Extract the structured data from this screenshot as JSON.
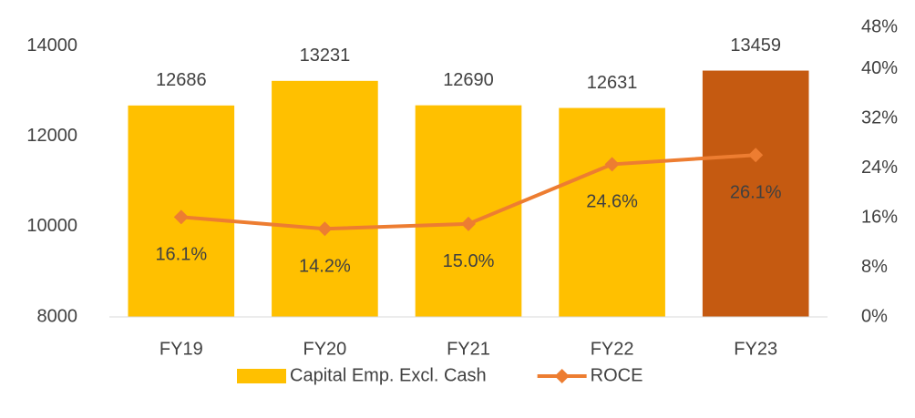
{
  "chart_data": {
    "type": "bar-line",
    "categories": [
      "FY19",
      "FY20",
      "FY21",
      "FY22",
      "FY23"
    ],
    "series": [
      {
        "name": "Capital Emp. Excl. Cash",
        "type": "bar",
        "color": "#FFC000",
        "colors": [
          "#FFC000",
          "#FFC000",
          "#FFC000",
          "#FFC000",
          "#C55A11"
        ],
        "values": [
          12686,
          13231,
          12690,
          12631,
          13459
        ]
      },
      {
        "name": "ROCE",
        "type": "line",
        "axis": "y2",
        "color": "#ED7D31",
        "values": [
          16.1,
          14.2,
          15.0,
          24.6,
          26.1
        ],
        "value_labels": [
          "16.1%",
          "14.2%",
          "15.0%",
          "24.6%",
          "26.1%"
        ]
      }
    ],
    "ylim": [
      8000,
      14600
    ],
    "yticks": [
      8000,
      10000,
      12000,
      14000
    ],
    "y2lim": [
      0,
      48
    ],
    "y2ticks": [
      {
        "value": 0,
        "label": "0%"
      },
      {
        "value": 8,
        "label": "8%"
      },
      {
        "value": 16,
        "label": "16%"
      },
      {
        "value": 24,
        "label": "24%"
      },
      {
        "value": 32,
        "label": "32%"
      },
      {
        "value": 40,
        "label": "40%"
      },
      {
        "value": 48,
        "label": "48%"
      }
    ],
    "legend": "bottom"
  }
}
